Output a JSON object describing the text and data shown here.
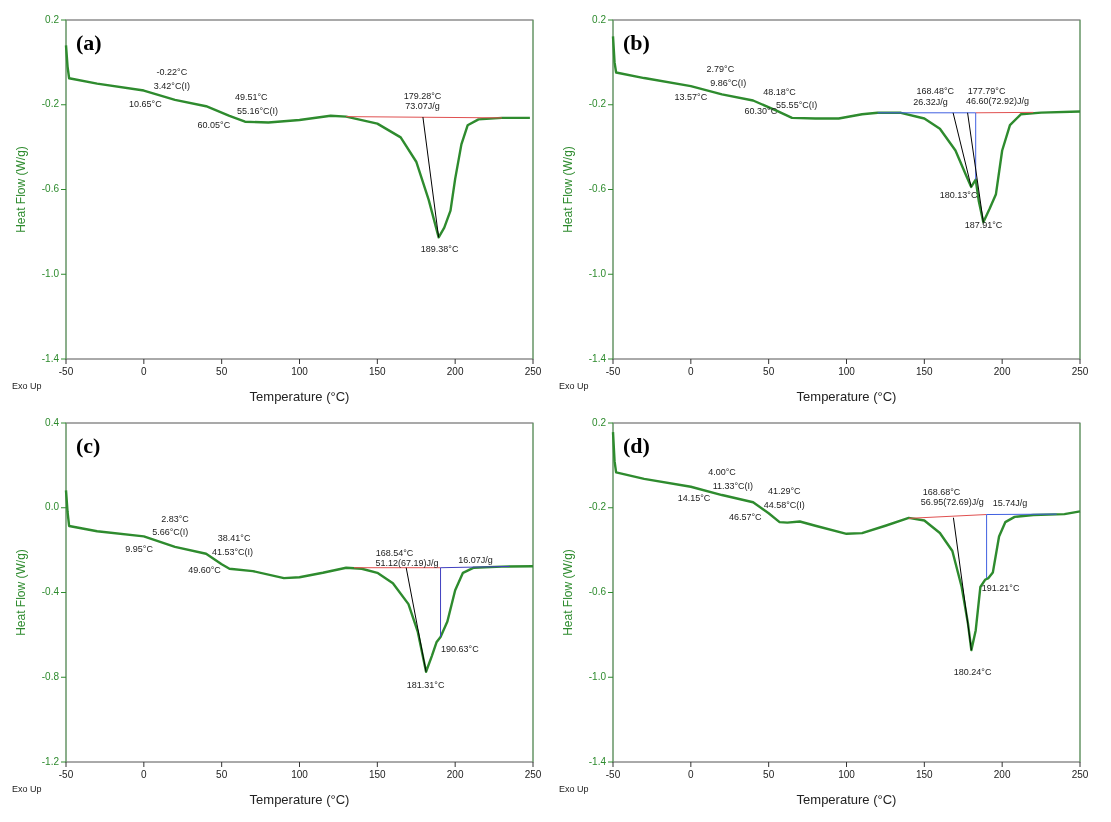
{
  "chart_data": [
    {
      "type": "line",
      "title": "(a)",
      "xlabel": "Temperature (°C)",
      "ylabel": "Heat Flow (W/g)",
      "xlim": [
        -50,
        250
      ],
      "ylim": [
        -1.4,
        0.2
      ],
      "xticks": [
        -50,
        0,
        50,
        100,
        150,
        200,
        250
      ],
      "yticks": [
        {
          "value": -1.4,
          "label": "-1.4"
        },
        {
          "value": -1.0,
          "label": "-1.0"
        },
        -0.6,
        -0.2,
        0.2
      ],
      "series": [
        {
          "color": "#2e8b2e",
          "x": [
            -50,
            -49,
            -48,
            -30,
            0,
            20,
            40,
            55,
            65,
            80,
            100,
            120,
            130,
            150,
            165,
            175,
            183,
            189.4,
            193,
            197,
            200,
            204,
            208,
            215,
            230,
            248
          ],
          "values": [
            0.08,
            -0.02,
            -0.075,
            -0.1,
            -0.133,
            -0.177,
            -0.207,
            -0.252,
            -0.28,
            -0.284,
            -0.272,
            -0.252,
            -0.256,
            -0.289,
            -0.354,
            -0.469,
            -0.649,
            -0.826,
            -0.78,
            -0.7,
            -0.55,
            -0.387,
            -0.297,
            -0.269,
            -0.262,
            -0.262
          ]
        },
        {
          "color": "#e05050",
          "x": [
            130,
            230
          ],
          "values": [
            -0.256,
            -0.262
          ]
        },
        {
          "color": "#000000",
          "x": [
            179.28,
            189.38
          ],
          "values": [
            -0.258,
            -0.826
          ]
        }
      ],
      "annotations": [
        "Exo Up",
        "-0.22°C",
        "3.42°C(I)",
        "10.65°C",
        "49.51°C",
        "55.16°C(I)",
        "60.05°C",
        "179.28°C",
        "73.07J/g",
        "189.38°C"
      ]
    },
    {
      "type": "line",
      "title": "(b)",
      "xlabel": "Temperature (°C)",
      "ylabel": "Heat Flow (W/g)",
      "xlim": [
        -50,
        250
      ],
      "ylim": [
        -1.4,
        0.2
      ],
      "xticks": [
        -50,
        0,
        50,
        100,
        150,
        200,
        250
      ],
      "yticks": [
        {
          "value": -1.4,
          "label": "-1.4"
        },
        {
          "value": -1.0,
          "label": "-1.0"
        },
        -0.6,
        -0.2,
        0.2
      ],
      "series": [
        {
          "color": "#2e8b2e",
          "x": [
            -50,
            -49,
            -48,
            -30,
            0,
            20,
            40,
            55,
            65,
            80,
            95,
            110,
            120,
            135,
            150,
            160,
            170,
            177,
            180.1,
            183,
            185,
            187.9,
            192,
            196,
            200,
            205,
            212,
            225,
            250
          ],
          "values": [
            0.123,
            0.0,
            -0.048,
            -0.074,
            -0.112,
            -0.151,
            -0.18,
            -0.228,
            -0.262,
            -0.265,
            -0.265,
            -0.245,
            -0.238,
            -0.238,
            -0.265,
            -0.313,
            -0.416,
            -0.536,
            -0.588,
            -0.553,
            -0.656,
            -0.755,
            -0.69,
            -0.622,
            -0.416,
            -0.296,
            -0.245,
            -0.237,
            -0.232
          ]
        },
        {
          "color": "#4060e0",
          "x": [
            120,
            183
          ],
          "values": [
            -0.238,
            -0.238
          ]
        },
        {
          "color": "#e05050",
          "x": [
            183,
            220
          ],
          "values": [
            -0.238,
            -0.236
          ]
        },
        {
          "color": "#4060e0",
          "x": [
            183,
            183
          ],
          "values": [
            -0.238,
            -0.553
          ]
        },
        {
          "color": "#000000",
          "x": [
            168.48,
            180.13
          ],
          "values": [
            -0.238,
            -0.588
          ]
        },
        {
          "color": "#000000",
          "x": [
            177.79,
            187.91
          ],
          "values": [
            -0.238,
            -0.755
          ]
        }
      ],
      "annotations": [
        "Exo Up",
        "2.79°C",
        "9.86°C(I)",
        "13.57°C",
        "48.18°C",
        "55.55°C(I)",
        "60.30°C",
        "168.48°C",
        "26.32J/g",
        "177.79°C",
        "46.60(72.92)J/g",
        "180.13°C",
        "187.91°C"
      ]
    },
    {
      "type": "line",
      "title": "(c)",
      "xlabel": "Temperature (°C)",
      "ylabel": "Heat Flow (W/g)",
      "xlim": [
        -50,
        250
      ],
      "ylim": [
        -1.2,
        0.4
      ],
      "xticks": [
        -50,
        0,
        50,
        100,
        150,
        200,
        250
      ],
      "yticks": [
        -1.2,
        -0.8,
        -0.4,
        {
          "value": 0,
          "label": "0.0"
        },
        0.4
      ],
      "series": [
        {
          "color": "#2e8b2e",
          "x": [
            -50,
            -49,
            -48,
            -30,
            0,
            20,
            40,
            50,
            55,
            70,
            90,
            100,
            115,
            130,
            140,
            150,
            160,
            170,
            176,
            181.3,
            185,
            188,
            190.6,
            195,
            200,
            205,
            212,
            230,
            250
          ],
          "values": [
            0.082,
            -0.02,
            -0.086,
            -0.111,
            -0.135,
            -0.185,
            -0.217,
            -0.267,
            -0.288,
            -0.299,
            -0.332,
            -0.328,
            -0.307,
            -0.283,
            -0.288,
            -0.307,
            -0.356,
            -0.455,
            -0.586,
            -0.774,
            -0.7,
            -0.635,
            -0.61,
            -0.537,
            -0.389,
            -0.307,
            -0.283,
            -0.278,
            -0.276
          ]
        },
        {
          "color": "#e05050",
          "x": [
            135,
            190.6
          ],
          "values": [
            -0.283,
            -0.283
          ]
        },
        {
          "color": "#4040c0",
          "x": [
            190.6,
            235
          ],
          "values": [
            -0.283,
            -0.277
          ]
        },
        {
          "color": "#4040c0",
          "x": [
            190.6,
            190.6
          ],
          "values": [
            -0.283,
            -0.61
          ]
        },
        {
          "color": "#000000",
          "x": [
            168.54,
            181.31
          ],
          "values": [
            -0.283,
            -0.774
          ]
        }
      ],
      "annotations": [
        "Exo Up",
        "2.83°C",
        "5.66°C(I)",
        "9.95°C",
        "38.41°C",
        "41.53°C(I)",
        "49.60°C",
        "168.54°C",
        "51.12(67.19)J/g",
        "16.07J/g",
        "190.63°C",
        "181.31°C"
      ]
    },
    {
      "type": "line",
      "title": "(d)",
      "xlabel": "Temperature (°C)",
      "ylabel": "Heat Flow (W/g)",
      "xlim": [
        -50,
        250
      ],
      "ylim": [
        -1.4,
        0.2
      ],
      "xticks": [
        -50,
        0,
        50,
        100,
        150,
        200,
        250
      ],
      "yticks": [
        {
          "value": -1.4,
          "label": "-1.4"
        },
        {
          "value": -1.0,
          "label": "-1.0"
        },
        -0.6,
        -0.2,
        0.2
      ],
      "series": [
        {
          "color": "#2e8b2e",
          "x": [
            -50,
            -49,
            -48,
            -30,
            0,
            20,
            40,
            50,
            57,
            62,
            70,
            80,
            100,
            110,
            125,
            140,
            150,
            160,
            168,
            174,
            178,
            180.2,
            183,
            186,
            189,
            191.2,
            194,
            198,
            202,
            208,
            220,
            240,
            250
          ],
          "values": [
            0.157,
            0.02,
            -0.033,
            -0.064,
            -0.101,
            -0.14,
            -0.174,
            -0.226,
            -0.268,
            -0.27,
            -0.265,
            -0.285,
            -0.323,
            -0.32,
            -0.285,
            -0.248,
            -0.26,
            -0.319,
            -0.404,
            -0.574,
            -0.745,
            -0.872,
            -0.779,
            -0.574,
            -0.54,
            -0.532,
            -0.506,
            -0.336,
            -0.268,
            -0.243,
            -0.234,
            -0.23,
            -0.217
          ]
        },
        {
          "color": "#e05050",
          "x": [
            140,
            190
          ],
          "values": [
            -0.25,
            -0.232
          ]
        },
        {
          "color": "#4060e0",
          "x": [
            190,
            235
          ],
          "values": [
            -0.232,
            -0.23
          ]
        },
        {
          "color": "#4060e0",
          "x": [
            190,
            190
          ],
          "values": [
            -0.232,
            -0.532
          ]
        },
        {
          "color": "#000000",
          "x": [
            168.68,
            180.24
          ],
          "values": [
            -0.247,
            -0.872
          ]
        }
      ],
      "annotations": [
        "Exo Up",
        "4.00°C",
        "11.33°C(I)",
        "14.15°C",
        "41.29°C",
        "44.58°C(I)",
        "46.57°C",
        "168.68°C",
        "56.95(72.69)J/g",
        "15.74J/g",
        "191.21°C",
        "180.24°C"
      ]
    }
  ]
}
